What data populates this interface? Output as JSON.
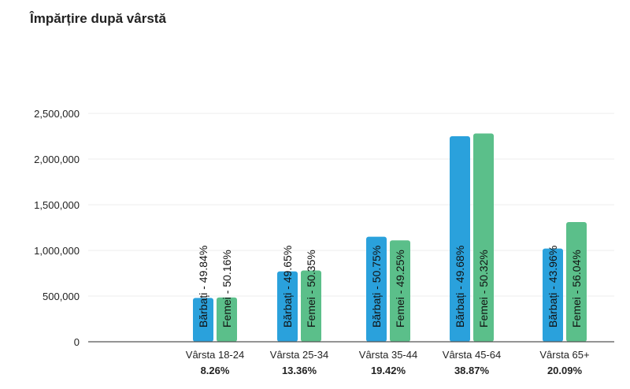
{
  "chart_data": {
    "type": "bar",
    "title": "Împărțire după vârstă",
    "ylim": [
      0,
      2500000
    ],
    "yticks": [
      {
        "value": 0,
        "label": "0"
      },
      {
        "value": 500000,
        "label": "500,000"
      },
      {
        "value": 1000000,
        "label": "1,000,000"
      },
      {
        "value": 1500000,
        "label": "1,500,000"
      },
      {
        "value": 2000000,
        "label": "2,000,000"
      },
      {
        "value": 2500000,
        "label": "2,500,000"
      }
    ],
    "grid": true,
    "categories": [
      "Vârsta 18-24",
      "Vârsta 25-34",
      "Vârsta 35-44",
      "Vârsta 45-64",
      "Vârsta 65+"
    ],
    "category_shares": [
      "8.26%",
      "13.36%",
      "19.42%",
      "38.87%",
      "20.09%"
    ],
    "series": [
      {
        "values": [
          480000,
          770000,
          1150000,
          2250000,
          1020000
        ],
        "labels": [
          "Bărbați - 49.84%",
          "Bărbați - 49.65%",
          "Bărbați - 50.75%",
          "Bărbați - 49.68%",
          "Bărbați - 43.96%"
        ],
        "color": "#2aa1dc"
      },
      {
        "values": [
          485000,
          780000,
          1110000,
          2280000,
          1310000
        ],
        "labels": [
          "Femei - 50.16%",
          "Femei - 50.35%",
          "Femei - 49.25%",
          "Femei - 50.32%",
          "Femei - 56.04%"
        ],
        "color": "#5bbf8a"
      }
    ]
  }
}
